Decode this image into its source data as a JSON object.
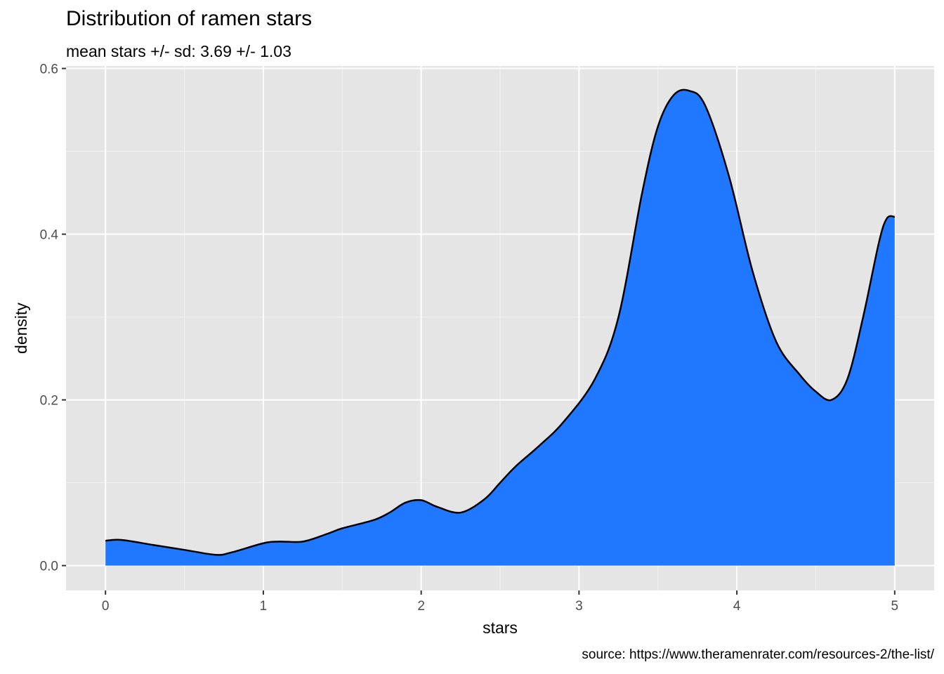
{
  "chart_data": {
    "type": "area",
    "title": "Distribution of ramen stars",
    "subtitle": "mean stars +/- sd: 3.69 +/- 1.03",
    "caption": "source: https://www.theramenrater.com/resources-2/the-list/",
    "xlabel": "stars",
    "ylabel": "density",
    "xlim": [
      -0.25,
      5.25
    ],
    "ylim": [
      -0.03,
      0.603
    ],
    "x_ticks": [
      0,
      1,
      2,
      3,
      4,
      5
    ],
    "x_tick_labels": [
      "0",
      "1",
      "2",
      "3",
      "4",
      "5"
    ],
    "y_ticks": [
      0.0,
      0.2,
      0.4,
      0.6
    ],
    "y_tick_labels": [
      "0.0",
      "0.2",
      "0.4",
      "0.6"
    ],
    "grid": true,
    "fill_color": "#1f78ff",
    "line_color": "#000000",
    "panel_background": "#e5e5e5",
    "series": [
      {
        "x": [
          0,
          0.1,
          0.3,
          0.5,
          0.7,
          0.8,
          1.0,
          1.1,
          1.25,
          1.4,
          1.5,
          1.7,
          1.8,
          1.9,
          2.0,
          2.1,
          2.25,
          2.4,
          2.5,
          2.6,
          2.75,
          2.9,
          3.1,
          3.25,
          3.4,
          3.5,
          3.6,
          3.7,
          3.8,
          3.95,
          4.1,
          4.25,
          4.4,
          4.5,
          4.6,
          4.7,
          4.8,
          4.9,
          4.95,
          5.0
        ],
        "y": [
          0.03,
          0.031,
          0.025,
          0.019,
          0.013,
          0.016,
          0.027,
          0.029,
          0.029,
          0.038,
          0.045,
          0.055,
          0.064,
          0.076,
          0.079,
          0.071,
          0.064,
          0.08,
          0.1,
          0.12,
          0.145,
          0.173,
          0.225,
          0.3,
          0.45,
          0.53,
          0.568,
          0.573,
          0.555,
          0.47,
          0.355,
          0.27,
          0.23,
          0.21,
          0.2,
          0.225,
          0.3,
          0.39,
          0.419,
          0.421
        ]
      }
    ]
  }
}
